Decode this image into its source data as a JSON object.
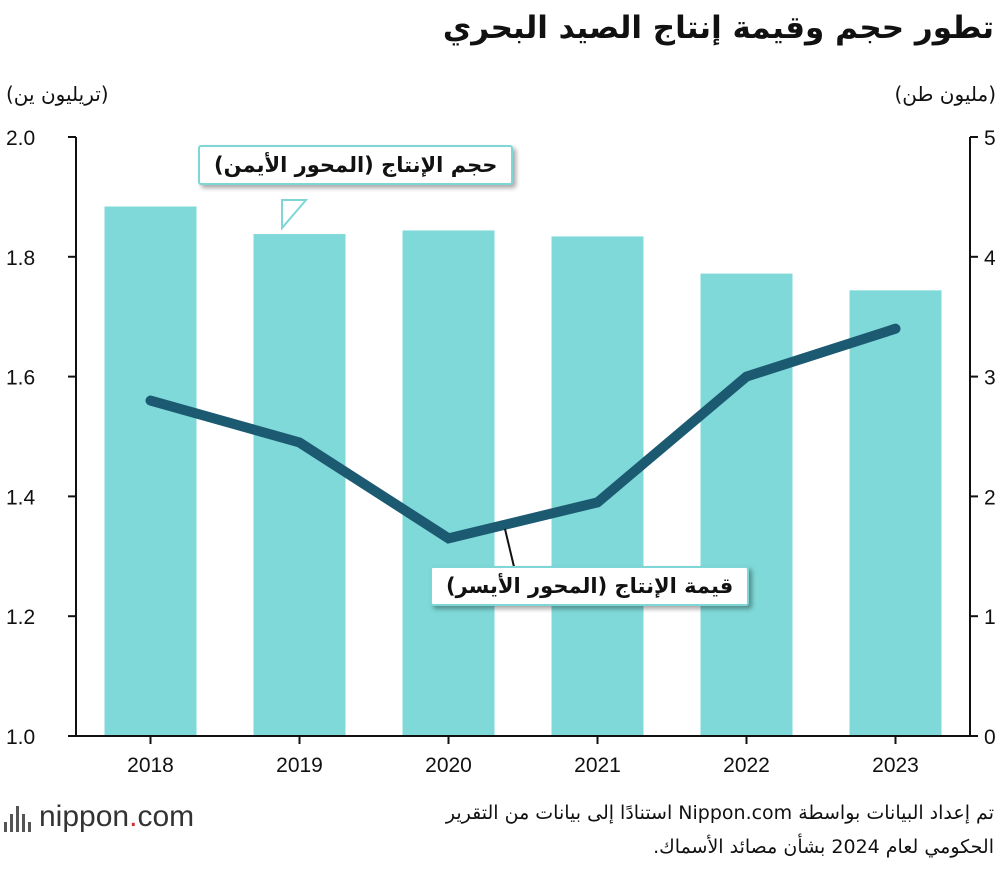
{
  "title": "تطور حجم وقيمة إنتاج الصيد البحري",
  "left_axis_unit": "(تريليون ين)",
  "right_axis_unit": "(مليون طن)",
  "source_line1": "تم إعداد البيانات بواسطة Nippon.com استنادًا إلى بيانات من التقرير",
  "source_line2": "الحكومي لعام 2024 بشأن مصائد الأسماك.",
  "logo": {
    "text_main": "nippon",
    "text_dot": ".",
    "text_tld": "com"
  },
  "colors": {
    "bars": "#7fd9d8",
    "line": "#1c5a72",
    "axis": "#111111",
    "callout_border": "#7fd6d6"
  },
  "chart_data": {
    "type": "bar+line",
    "categories": [
      "2018",
      "2019",
      "2020",
      "2021",
      "2022",
      "2023"
    ],
    "series": [
      {
        "name": "حجم الإنتاج (المحور الأيمن)",
        "type": "bar",
        "axis": "right",
        "unit": "مليون طن",
        "values": [
          4.42,
          4.19,
          4.22,
          4.17,
          3.86,
          3.72
        ]
      },
      {
        "name": "قيمة الإنتاج (المحور الأيسر)",
        "type": "line",
        "axis": "left",
        "unit": "تريليون ين",
        "values": [
          1.56,
          1.49,
          1.33,
          1.39,
          1.6,
          1.68
        ]
      }
    ],
    "left_axis": {
      "min": 1.0,
      "max": 2.0,
      "ticks": [
        "1.0",
        "1.2",
        "1.4",
        "1.6",
        "1.8",
        "2.0"
      ]
    },
    "right_axis": {
      "min": 0,
      "max": 5,
      "ticks": [
        "0",
        "1",
        "2",
        "3",
        "4",
        "5"
      ]
    },
    "grid": false
  }
}
